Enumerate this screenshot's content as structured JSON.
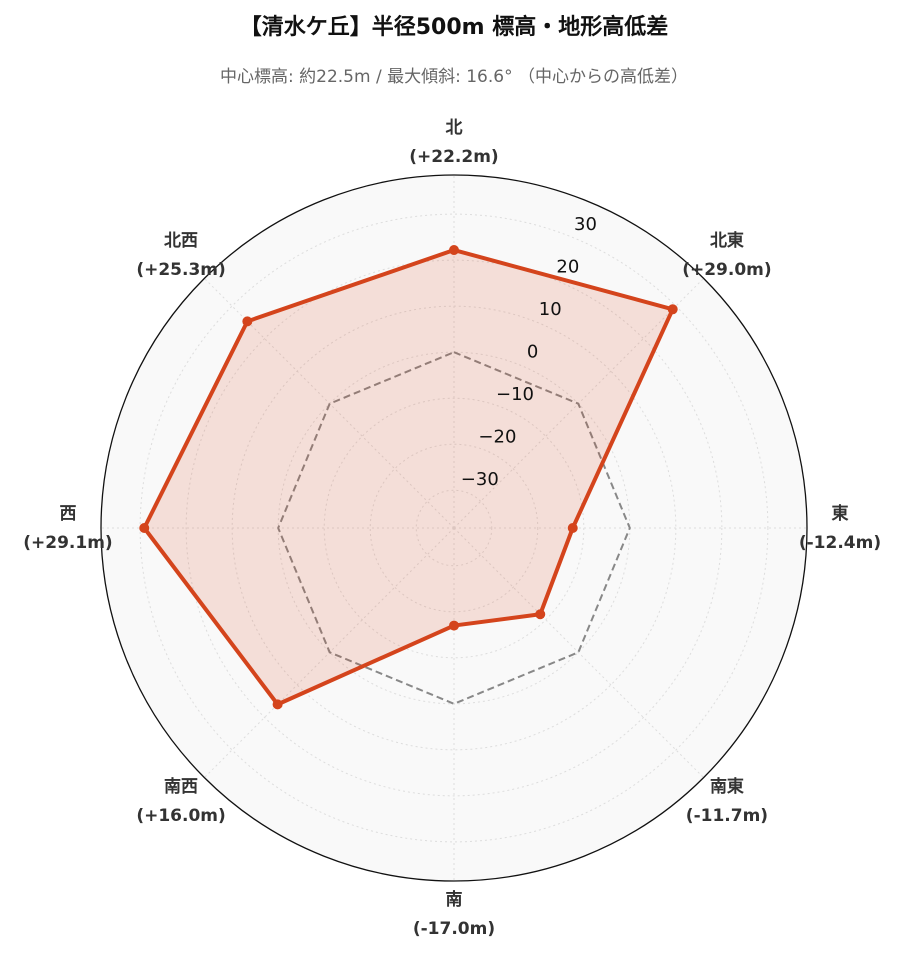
{
  "chart_data": {
    "type": "radar",
    "title": "【清水ケ丘】半径500m 標高・地形高低差",
    "subtitle": "中心標高: 約22.5m / 最大傾斜: 16.6° （中心からの高低差）",
    "categories": [
      "北",
      "北東",
      "東",
      "南東",
      "南",
      "南西",
      "西",
      "北西"
    ],
    "values": [
      22.2,
      29.0,
      -12.4,
      -11.7,
      -17.0,
      16.0,
      29.1,
      25.3
    ],
    "value_labels": [
      "(+22.2m)",
      "(+29.0m)",
      "(-12.4m)",
      "(-11.7m)",
      "(-17.0m)",
      "(+16.0m)",
      "(+29.1m)",
      "(+25.3m)"
    ],
    "color": "#d4441c",
    "reference_line": 0,
    "rlim": [
      -38.2,
      38.5
    ],
    "rticks": [
      {
        "value": -30,
        "label": "−30"
      },
      {
        "value": -20,
        "label": "−20"
      },
      {
        "value": -10,
        "label": "−10"
      },
      0,
      10,
      20,
      30
    ],
    "grid": true
  }
}
